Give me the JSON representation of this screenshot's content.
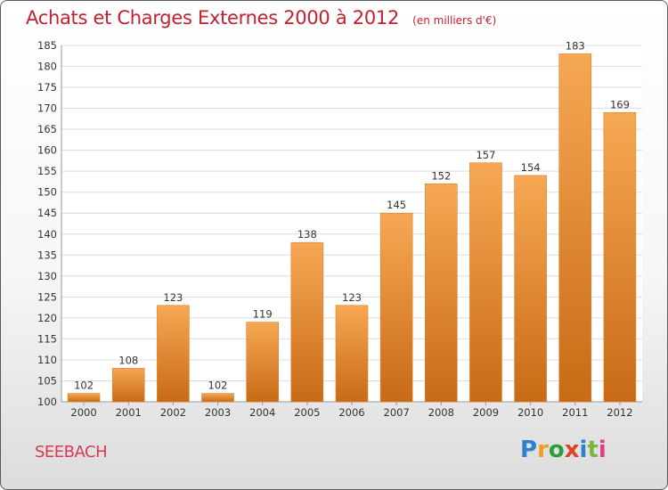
{
  "title": "Achats et Charges Externes 2000 à 2012",
  "unit": "(en milliers d'€)",
  "commune": "SEEBACH",
  "logo": {
    "text": "Proxiti",
    "colors": [
      "#2d7fd0",
      "#f0a020",
      "#2d9c3a",
      "#e0402a",
      "#2d7fd0",
      "#7ab83a",
      "#e03a8a"
    ]
  },
  "colors": {
    "title": "#c4202e",
    "bar_light": "#f7a854",
    "bar_dark": "#c86a16",
    "grid": "#dcdcdc"
  },
  "chart_data": {
    "type": "bar",
    "categories": [
      "2000",
      "2001",
      "2002",
      "2003",
      "2004",
      "2005",
      "2006",
      "2007",
      "2008",
      "2009",
      "2010",
      "2011",
      "2012"
    ],
    "values": [
      102,
      108,
      123,
      102,
      119,
      138,
      123,
      145,
      152,
      157,
      154,
      183,
      169
    ],
    "ylim": [
      100,
      185
    ],
    "yticks": [
      100,
      105,
      110,
      115,
      120,
      125,
      130,
      135,
      140,
      145,
      150,
      155,
      160,
      165,
      170,
      175,
      180,
      185
    ],
    "grid": true,
    "xlabel": "",
    "ylabel": ""
  }
}
